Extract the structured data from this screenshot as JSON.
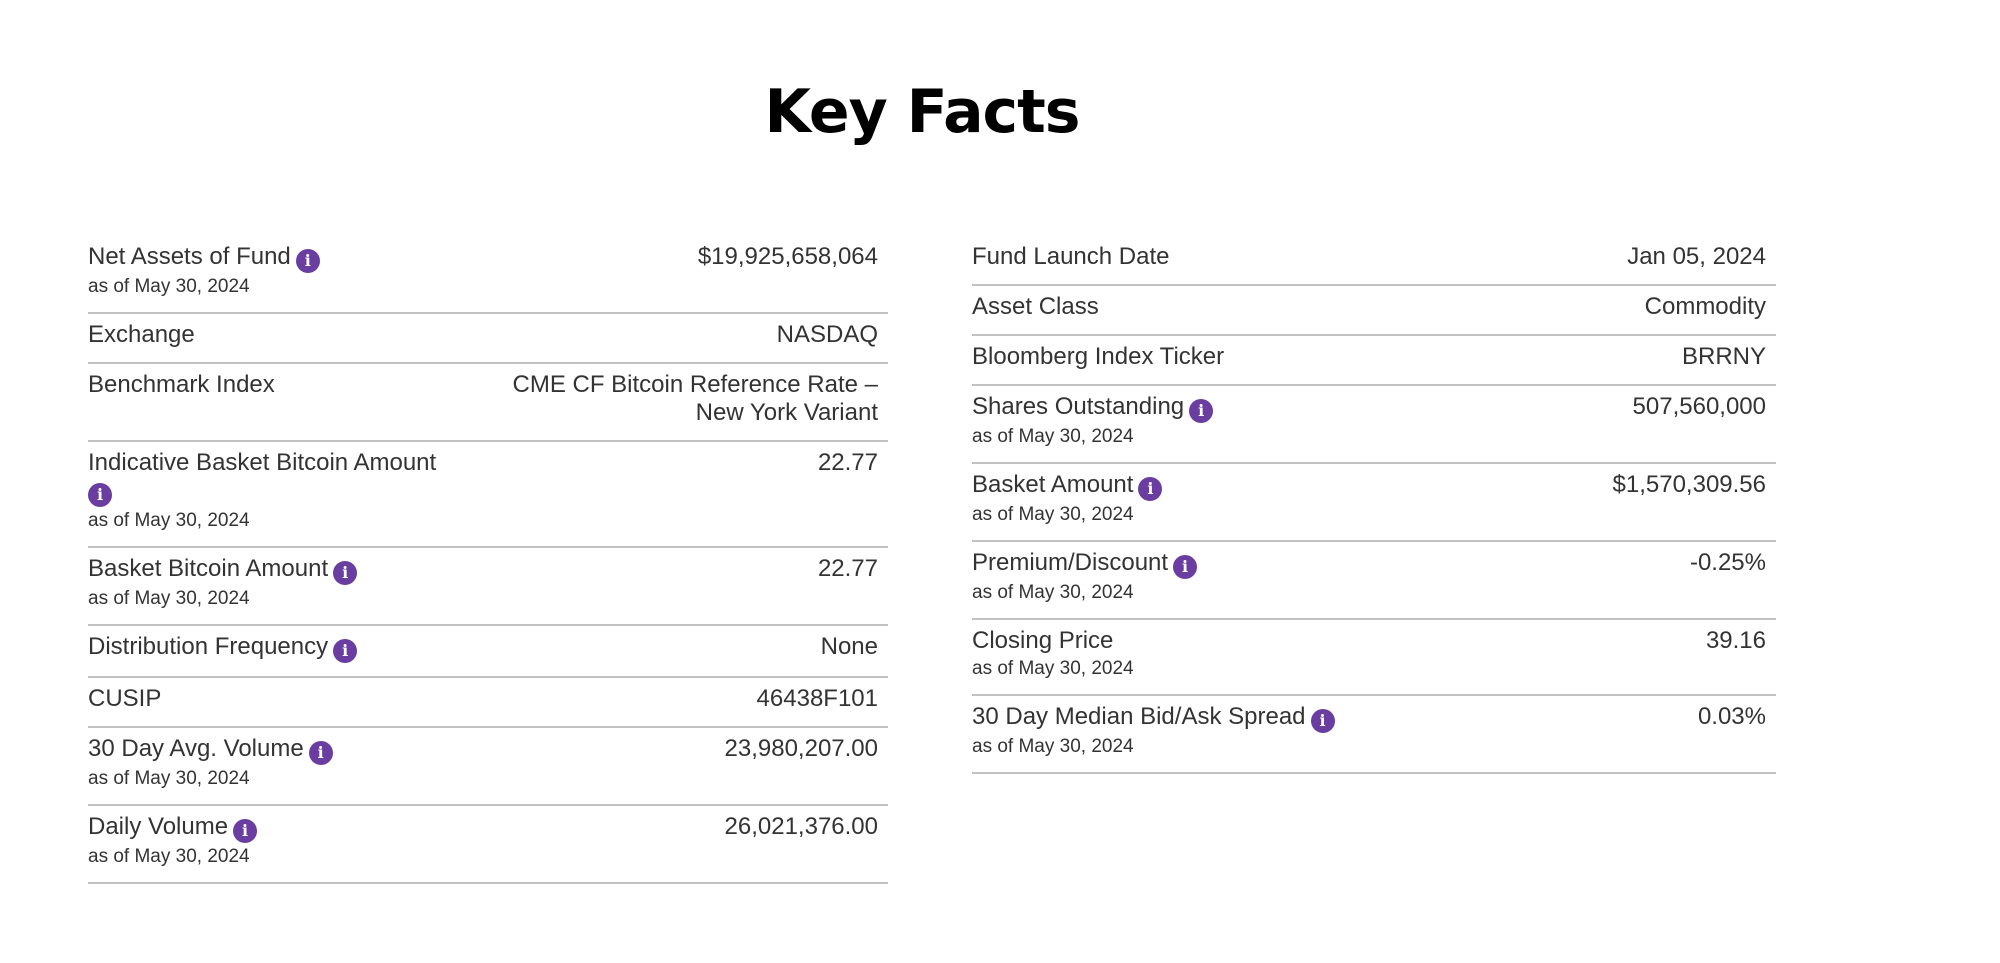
{
  "page": {
    "title": "Key Facts"
  },
  "info_icon_glyph": "i",
  "accent_color": "#6a3ea1",
  "left_rows": [
    {
      "label": "Net Assets of Fund",
      "info": true,
      "asof": "as of May 30, 2024",
      "value": "$19,925,658,064"
    },
    {
      "label": "Exchange",
      "info": false,
      "asof": "",
      "value": "NASDAQ"
    },
    {
      "label": "Benchmark Index",
      "info": false,
      "asof": "",
      "value": "CME CF Bitcoin Reference Rate – New York Variant"
    },
    {
      "label": "Indicative Basket Bitcoin Amount",
      "info": true,
      "asof": "as of May 30, 2024",
      "value": "22.77"
    },
    {
      "label": "Basket Bitcoin Amount",
      "info": true,
      "asof": "as of May 30, 2024",
      "value": "22.77"
    },
    {
      "label": "Distribution Frequency",
      "info": true,
      "asof": "",
      "value": "None"
    },
    {
      "label": "CUSIP",
      "info": false,
      "asof": "",
      "value": "46438F101"
    },
    {
      "label": "30 Day Avg. Volume",
      "info": true,
      "asof": "as of May 30, 2024",
      "value": "23,980,207.00"
    },
    {
      "label": "Daily Volume",
      "info": true,
      "asof": "as of May 30, 2024",
      "value": "26,021,376.00"
    }
  ],
  "right_rows": [
    {
      "label": "Fund Launch Date",
      "info": false,
      "asof": "",
      "value": "Jan 05, 2024"
    },
    {
      "label": "Asset Class",
      "info": false,
      "asof": "",
      "value": "Commodity"
    },
    {
      "label": "Bloomberg Index Ticker",
      "info": false,
      "asof": "",
      "value": "BRRNY"
    },
    {
      "label": "Shares Outstanding",
      "info": true,
      "asof": "as of May 30, 2024",
      "value": "507,560,000"
    },
    {
      "label": "Basket Amount",
      "info": true,
      "asof": "as of May 30, 2024",
      "value": "$1,570,309.56"
    },
    {
      "label": "Premium/Discount",
      "info": true,
      "asof": "as of May 30, 2024",
      "value": "-0.25%"
    },
    {
      "label": "Closing Price",
      "info": false,
      "asof": "as of May 30, 2024",
      "value": "39.16"
    },
    {
      "label": "30 Day Median Bid/Ask Spread",
      "info": true,
      "asof": "as of May 30, 2024",
      "value": "0.03%"
    }
  ]
}
